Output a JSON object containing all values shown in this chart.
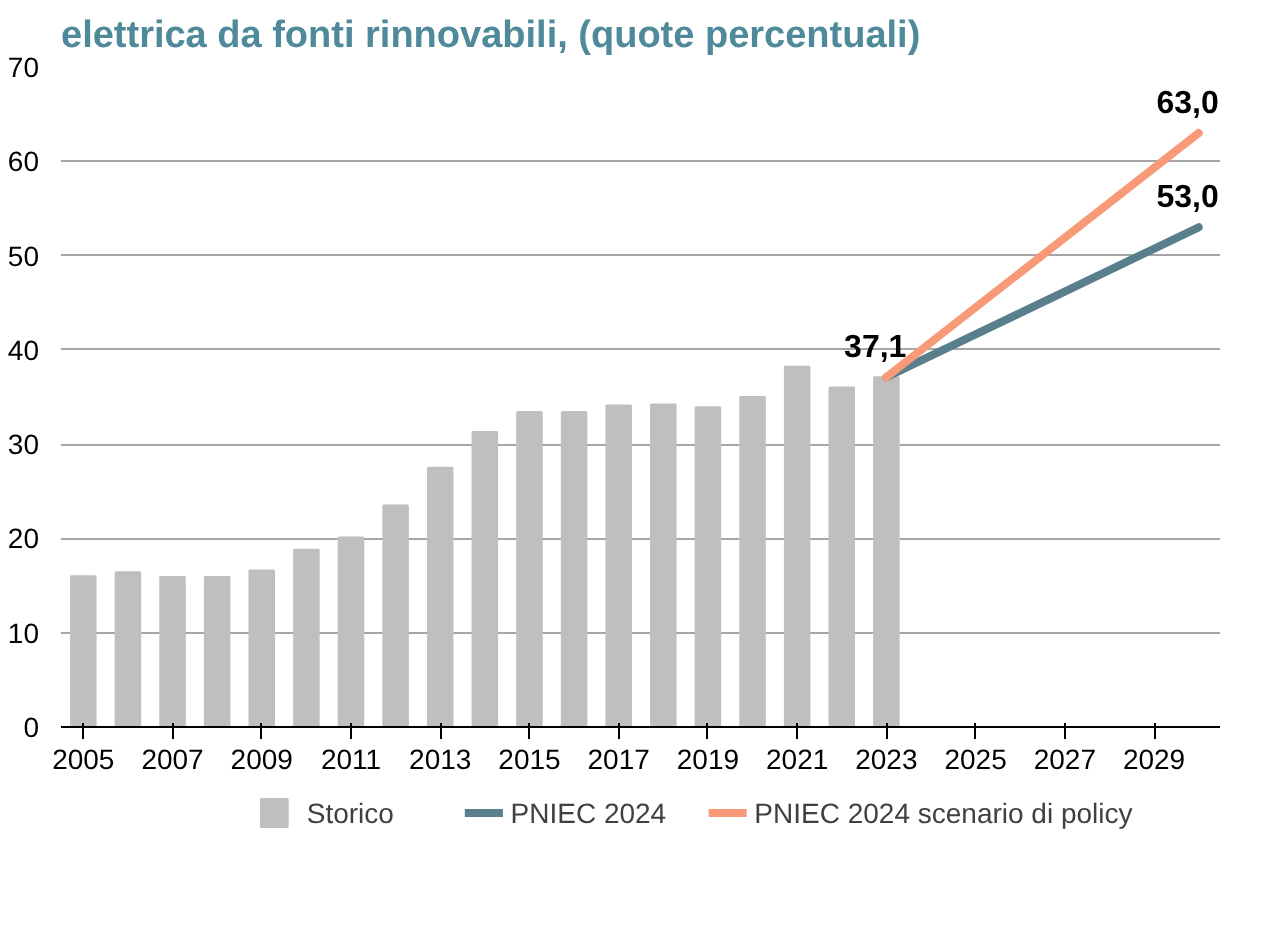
{
  "chart_data": {
    "type": "bar",
    "title": "elettrica da fonti rinnovabili, (quote percentuali)",
    "xlim": [
      2004.5,
      2030.5
    ],
    "xticks": [
      2005,
      2007,
      2009,
      2011,
      2013,
      2015,
      2017,
      2019,
      2021,
      2023,
      2025,
      2027,
      2029
    ],
    "ylim": [
      0,
      70
    ],
    "yticks": [
      0,
      10,
      20,
      30,
      40,
      50,
      60,
      70
    ],
    "grid": "y",
    "legend": "bottom",
    "series": [
      {
        "name": "Storico",
        "type": "bar",
        "color": "#bfbfbf",
        "x": [
          2005,
          2006,
          2007,
          2008,
          2009,
          2010,
          2011,
          2012,
          2013,
          2014,
          2015,
          2016,
          2017,
          2018,
          2019,
          2020,
          2021,
          2022,
          2023
        ],
        "values": [
          16.0,
          16.4,
          15.9,
          15.9,
          16.6,
          18.8,
          20.1,
          23.5,
          27.5,
          31.3,
          33.4,
          33.4,
          34.1,
          34.2,
          33.9,
          35.0,
          38.2,
          36.0,
          37.1
        ]
      },
      {
        "name": "PNIEC 2024",
        "type": "line",
        "color": "#5a7f8c",
        "x": [
          2023,
          2030
        ],
        "values": [
          37.1,
          53.0
        ],
        "value_labels": [
          "37,1",
          "53,0"
        ]
      },
      {
        "name": "PNIEC 2024 scenario di policy",
        "type": "line",
        "color": "#f89a78",
        "x": [
          2023,
          2030
        ],
        "values": [
          37.1,
          63.0
        ],
        "value_labels": [
          null,
          "63,0"
        ]
      }
    ]
  }
}
